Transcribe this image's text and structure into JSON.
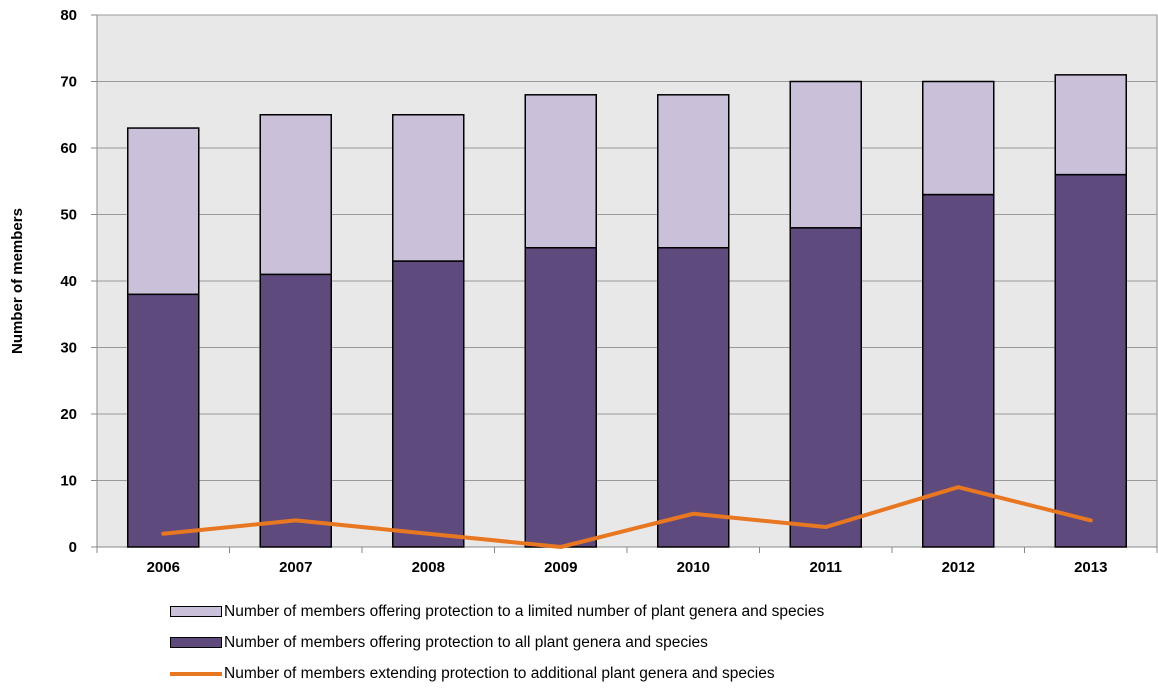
{
  "chart_data": {
    "type": "bar",
    "stacked": true,
    "categories": [
      "2006",
      "2007",
      "2008",
      "2009",
      "2010",
      "2011",
      "2012",
      "2013"
    ],
    "ylabel": "Number of members",
    "xlabel": "",
    "ylim": [
      0,
      80
    ],
    "yticks": [
      0,
      10,
      20,
      30,
      40,
      50,
      60,
      70,
      80
    ],
    "grid": true,
    "legend_position": "bottom",
    "series": [
      {
        "name": "Number of members offering protection to all plant genera and species",
        "kind": "bar",
        "color": "#5e4a7c",
        "values": [
          38,
          41,
          43,
          45,
          45,
          48,
          53,
          56
        ]
      },
      {
        "name": "Number of members offering protection to a limited number of plant genera and species",
        "kind": "bar",
        "color": "#cbc0da",
        "values": [
          25,
          24,
          22,
          23,
          23,
          22,
          17,
          15
        ]
      },
      {
        "name": "Number of members extending protection to additional plant genera and species",
        "kind": "line",
        "color": "#e87722",
        "values": [
          2,
          4,
          2,
          0,
          5,
          3,
          9,
          4
        ]
      }
    ]
  },
  "colors": {
    "plot_background": "#e8e8e8",
    "gridline": "#9a9a9a"
  }
}
